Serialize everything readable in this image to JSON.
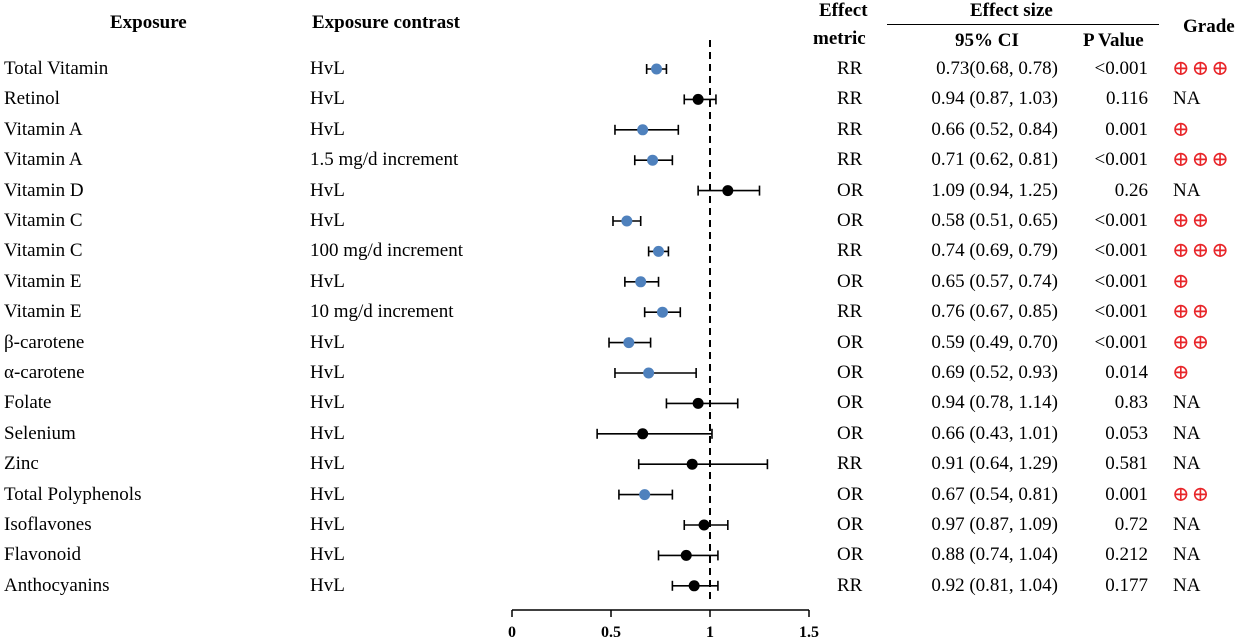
{
  "headers": {
    "exposure": "Exposure",
    "contrast": "Exposure contrast",
    "metric_line1": "Effect",
    "metric_line2": "metric",
    "effect_size": "Effect size",
    "ci": "95% CI",
    "p": "P Value",
    "grade": "Grade"
  },
  "colors": {
    "significant": "#4f81bd",
    "nonsignificant": "#000000",
    "grade": "#e8262a"
  },
  "chart_data": {
    "type": "forest",
    "x_ticks": [
      "0",
      "0.5",
      "1",
      "1.5"
    ],
    "x_range": [
      0,
      1.5
    ],
    "reference_line": 1,
    "rows": [
      {
        "exposure": "Total Vitamin",
        "contrast": "HvL",
        "metric": "RR",
        "est": 0.73,
        "lo": 0.68,
        "hi": 0.78,
        "ci_text": "0.73(0.68, 0.78)",
        "p": "<0.001",
        "grade": "⊕⊕⊕",
        "sig": true
      },
      {
        "exposure": "Retinol",
        "contrast": "HvL",
        "metric": "RR",
        "est": 0.94,
        "lo": 0.87,
        "hi": 1.03,
        "ci_text": "0.94 (0.87, 1.03)",
        "p": "0.116",
        "grade": "NA",
        "sig": false
      },
      {
        "exposure": "Vitamin A",
        "contrast": "HvL",
        "metric": "RR",
        "est": 0.66,
        "lo": 0.52,
        "hi": 0.84,
        "ci_text": "0.66 (0.52, 0.84)",
        "p": "0.001",
        "grade": "⊕",
        "sig": true
      },
      {
        "exposure": "Vitamin A",
        "contrast": "1.5 mg/d increment",
        "metric": "RR",
        "est": 0.71,
        "lo": 0.62,
        "hi": 0.81,
        "ci_text": "0.71 (0.62, 0.81)",
        "p": "<0.001",
        "grade": "⊕⊕⊕",
        "sig": true
      },
      {
        "exposure": "Vitamin D",
        "contrast": "HvL",
        "metric": "OR",
        "est": 1.09,
        "lo": 0.94,
        "hi": 1.25,
        "ci_text": "1.09 (0.94, 1.25)",
        "p": "0.26",
        "grade": "NA",
        "sig": false
      },
      {
        "exposure": "Vitamin C",
        "contrast": "HvL",
        "metric": "OR",
        "est": 0.58,
        "lo": 0.51,
        "hi": 0.65,
        "ci_text": "0.58 (0.51, 0.65)",
        "p": "<0.001",
        "grade": "⊕⊕",
        "sig": true
      },
      {
        "exposure": "Vitamin C",
        "contrast": "100 mg/d increment",
        "metric": "RR",
        "est": 0.74,
        "lo": 0.69,
        "hi": 0.79,
        "ci_text": "0.74 (0.69, 0.79)",
        "p": "<0.001",
        "grade": "⊕⊕⊕",
        "sig": true
      },
      {
        "exposure": "Vitamin E",
        "contrast": "HvL",
        "metric": "OR",
        "est": 0.65,
        "lo": 0.57,
        "hi": 0.74,
        "ci_text": "0.65 (0.57, 0.74)",
        "p": "<0.001",
        "grade": "⊕",
        "sig": true
      },
      {
        "exposure": "Vitamin E",
        "contrast": "10 mg/d increment",
        "metric": "RR",
        "est": 0.76,
        "lo": 0.67,
        "hi": 0.85,
        "ci_text": "0.76 (0.67, 0.85)",
        "p": "<0.001",
        "grade": "⊕⊕",
        "sig": true
      },
      {
        "exposure": "β-carotene",
        "contrast": "HvL",
        "metric": "OR",
        "est": 0.59,
        "lo": 0.49,
        "hi": 0.7,
        "ci_text": "0.59 (0.49, 0.70)",
        "p": "<0.001",
        "grade": "⊕⊕",
        "sig": true
      },
      {
        "exposure": "α-carotene",
        "contrast": "HvL",
        "metric": "OR",
        "est": 0.69,
        "lo": 0.52,
        "hi": 0.93,
        "ci_text": "0.69 (0.52, 0.93)",
        "p": "0.014",
        "grade": "⊕",
        "sig": true
      },
      {
        "exposure": "Folate",
        "contrast": "HvL",
        "metric": "OR",
        "est": 0.94,
        "lo": 0.78,
        "hi": 1.14,
        "ci_text": "0.94 (0.78, 1.14)",
        "p": "0.83",
        "grade": "NA",
        "sig": false
      },
      {
        "exposure": "Selenium",
        "contrast": "HvL",
        "metric": "OR",
        "est": 0.66,
        "lo": 0.43,
        "hi": 1.01,
        "ci_text": "0.66 (0.43, 1.01)",
        "p": "0.053",
        "grade": "NA",
        "sig": false
      },
      {
        "exposure": "Zinc",
        "contrast": "HvL",
        "metric": "RR",
        "est": 0.91,
        "lo": 0.64,
        "hi": 1.29,
        "ci_text": "0.91 (0.64, 1.29)",
        "p": "0.581",
        "grade": "NA",
        "sig": false
      },
      {
        "exposure": "Total Polyphenols",
        "contrast": "HvL",
        "metric": "OR",
        "est": 0.67,
        "lo": 0.54,
        "hi": 0.81,
        "ci_text": "0.67 (0.54, 0.81)",
        "p": "0.001",
        "grade": "⊕⊕",
        "sig": true
      },
      {
        "exposure": "Isoflavones",
        "contrast": "HvL",
        "metric": "OR",
        "est": 0.97,
        "lo": 0.87,
        "hi": 1.09,
        "ci_text": "0.97 (0.87, 1.09)",
        "p": "0.72",
        "grade": "NA",
        "sig": false
      },
      {
        "exposure": "Flavonoid",
        "contrast": "HvL",
        "metric": "OR",
        "est": 0.88,
        "lo": 0.74,
        "hi": 1.04,
        "ci_text": "0.88 (0.74, 1.04)",
        "p": "0.212",
        "grade": "NA",
        "sig": false
      },
      {
        "exposure": "Anthocyanins",
        "contrast": "HvL",
        "metric": "RR",
        "est": 0.92,
        "lo": 0.81,
        "hi": 1.04,
        "ci_text": "0.92 (0.81, 1.04)",
        "p": "0.177",
        "grade": "NA",
        "sig": false
      }
    ]
  }
}
